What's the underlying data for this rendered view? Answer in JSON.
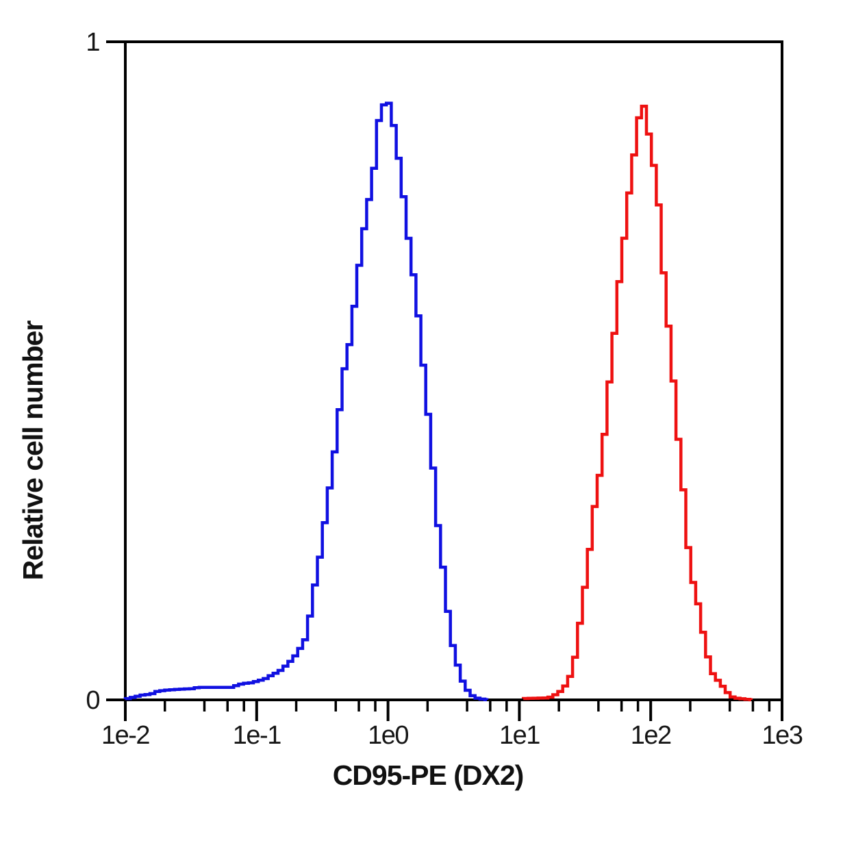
{
  "figure": {
    "background": "#ffffff",
    "frame_color": "#000000"
  },
  "chart_data": {
    "type": "line",
    "subtype": "flow-cytometry-histogram-overlay",
    "title": "",
    "xlabel": "CD95-PE (DX2)",
    "ylabel": "Relative cell number",
    "x_scale": "log10",
    "xlim_log10": [
      -2,
      3
    ],
    "ylim": [
      0,
      1
    ],
    "grid": false,
    "legend": false,
    "x_ticks": [
      {
        "value_log10": -2,
        "label": "1e-2"
      },
      {
        "value_log10": -1,
        "label": "1e-1"
      },
      {
        "value_log10": 0,
        "label": "1e0"
      },
      {
        "value_log10": 1,
        "label": "1e1"
      },
      {
        "value_log10": 2,
        "label": "1e2"
      },
      {
        "value_log10": 3,
        "label": "1e3"
      }
    ],
    "x_minor_tick_multiples": [
      2,
      4,
      6,
      8
    ],
    "y_ticks": [
      {
        "value": 0,
        "label": "0"
      },
      {
        "value": 1,
        "label": "1"
      }
    ],
    "step_bin_width_log10": 0.0375,
    "series": [
      {
        "name": "blue",
        "color": "#1010e1",
        "peak": {
          "x_log10": 0.0,
          "y": 0.91
        },
        "points_log10x_y": [
          [
            -2.0,
            0.001
          ],
          [
            -1.963,
            0.003
          ],
          [
            -1.911,
            0.005
          ],
          [
            -1.885,
            0.007
          ],
          [
            -1.833,
            0.008
          ],
          [
            -1.781,
            0.01
          ],
          [
            -1.754,
            0.013
          ],
          [
            -1.676,
            0.015
          ],
          [
            -1.598,
            0.016
          ],
          [
            -1.493,
            0.017
          ],
          [
            -1.441,
            0.019
          ],
          [
            -1.284,
            0.019
          ],
          [
            -1.18,
            0.019
          ],
          [
            -1.143,
            0.023
          ],
          [
            -1.091,
            0.025
          ],
          [
            -1.038,
            0.026
          ],
          [
            -0.986,
            0.029
          ],
          [
            -0.934,
            0.032
          ],
          [
            -0.882,
            0.038
          ],
          [
            -0.83,
            0.043
          ],
          [
            -0.798,
            0.048
          ],
          [
            -0.762,
            0.055
          ],
          [
            -0.725,
            0.062
          ],
          [
            -0.694,
            0.07
          ],
          [
            -0.657,
            0.082
          ],
          [
            -0.621,
            0.095
          ],
          [
            -0.595,
            0.126
          ],
          [
            -0.579,
            0.144
          ],
          [
            -0.569,
            0.161
          ],
          [
            -0.553,
            0.178
          ],
          [
            -0.537,
            0.196
          ],
          [
            -0.521,
            0.213
          ],
          [
            -0.511,
            0.23
          ],
          [
            -0.495,
            0.248
          ],
          [
            -0.485,
            0.265
          ],
          [
            -0.469,
            0.283
          ],
          [
            -0.459,
            0.3
          ],
          [
            -0.448,
            0.317
          ],
          [
            -0.433,
            0.335
          ],
          [
            -0.422,
            0.352
          ],
          [
            -0.412,
            0.369
          ],
          [
            -0.401,
            0.384
          ],
          [
            -0.391,
            0.404
          ],
          [
            -0.38,
            0.421
          ],
          [
            -0.37,
            0.439
          ],
          [
            -0.359,
            0.457
          ],
          [
            -0.349,
            0.473
          ],
          [
            -0.338,
            0.491
          ],
          [
            -0.328,
            0.509
          ],
          [
            -0.317,
            0.522
          ],
          [
            -0.302,
            0.53
          ],
          [
            -0.291,
            0.543
          ],
          [
            -0.281,
            0.561
          ],
          [
            -0.27,
            0.575
          ],
          [
            -0.26,
            0.592
          ],
          [
            -0.249,
            0.61
          ],
          [
            -0.239,
            0.632
          ],
          [
            -0.228,
            0.648
          ],
          [
            -0.213,
            0.668
          ],
          [
            -0.192,
            0.7
          ],
          [
            -0.171,
            0.731
          ],
          [
            -0.145,
            0.759
          ],
          [
            -0.124,
            0.78
          ],
          [
            -0.108,
            0.804
          ],
          [
            -0.098,
            0.825
          ],
          [
            -0.087,
            0.851
          ],
          [
            -0.077,
            0.879
          ],
          [
            -0.045,
            0.884
          ],
          [
            -0.03,
            0.906
          ],
          [
            0.0,
            0.909
          ],
          [
            0.021,
            0.901
          ],
          [
            0.037,
            0.885
          ],
          [
            0.047,
            0.867
          ],
          [
            0.058,
            0.851
          ],
          [
            0.073,
            0.838
          ],
          [
            0.084,
            0.818
          ],
          [
            0.099,
            0.797
          ],
          [
            0.11,
            0.776
          ],
          [
            0.126,
            0.755
          ],
          [
            0.136,
            0.738
          ],
          [
            0.157,
            0.7
          ],
          [
            0.178,
            0.668
          ],
          [
            0.215,
            0.616
          ],
          [
            0.241,
            0.564
          ],
          [
            0.267,
            0.512
          ],
          [
            0.293,
            0.46
          ],
          [
            0.325,
            0.397
          ],
          [
            0.351,
            0.335
          ],
          [
            0.377,
            0.272
          ],
          [
            0.414,
            0.21
          ],
          [
            0.45,
            0.147
          ],
          [
            0.466,
            0.115
          ],
          [
            0.492,
            0.084
          ],
          [
            0.508,
            0.071
          ],
          [
            0.524,
            0.06
          ],
          [
            0.534,
            0.05
          ],
          [
            0.555,
            0.038
          ],
          [
            0.571,
            0.027
          ],
          [
            0.586,
            0.02
          ],
          [
            0.612,
            0.013
          ],
          [
            0.633,
            0.008
          ],
          [
            0.659,
            0.004
          ],
          [
            0.691,
            0.002
          ],
          [
            0.753,
            0.0
          ]
        ]
      },
      {
        "name": "red",
        "color": "#ee1111",
        "peak": {
          "x_log10": 1.94,
          "y": 0.905
        },
        "points_log10x_y": [
          [
            1.03,
            0.002
          ],
          [
            1.224,
            0.003
          ],
          [
            1.276,
            0.008
          ],
          [
            1.313,
            0.013
          ],
          [
            1.328,
            0.017
          ],
          [
            1.354,
            0.022
          ],
          [
            1.38,
            0.032
          ],
          [
            1.407,
            0.048
          ],
          [
            1.433,
            0.074
          ],
          [
            1.448,
            0.1
          ],
          [
            1.469,
            0.126
          ],
          [
            1.495,
            0.165
          ],
          [
            1.521,
            0.207
          ],
          [
            1.547,
            0.244
          ],
          [
            1.563,
            0.275
          ],
          [
            1.579,
            0.303
          ],
          [
            1.605,
            0.335
          ],
          [
            1.626,
            0.356
          ],
          [
            1.641,
            0.387
          ],
          [
            1.657,
            0.421
          ],
          [
            1.678,
            0.463
          ],
          [
            1.694,
            0.502
          ],
          [
            1.709,
            0.533
          ],
          [
            1.73,
            0.567
          ],
          [
            1.746,
            0.606
          ],
          [
            1.762,
            0.637
          ],
          [
            1.783,
            0.668
          ],
          [
            1.798,
            0.7
          ],
          [
            1.814,
            0.731
          ],
          [
            1.83,
            0.759
          ],
          [
            1.845,
            0.786
          ],
          [
            1.861,
            0.804
          ],
          [
            1.872,
            0.825
          ],
          [
            1.887,
            0.851
          ],
          [
            1.898,
            0.875
          ],
          [
            1.919,
            0.89
          ],
          [
            1.94,
            0.905
          ],
          [
            1.961,
            0.898
          ],
          [
            1.971,
            0.882
          ],
          [
            1.981,
            0.863
          ],
          [
            1.997,
            0.853
          ],
          [
            2.007,
            0.835
          ],
          [
            2.023,
            0.814
          ],
          [
            2.033,
            0.79
          ],
          [
            2.044,
            0.776
          ],
          [
            2.059,
            0.755
          ],
          [
            2.075,
            0.734
          ],
          [
            2.091,
            0.69
          ],
          [
            2.101,
            0.637
          ],
          [
            2.122,
            0.599
          ],
          [
            2.138,
            0.564
          ],
          [
            2.153,
            0.526
          ],
          [
            2.174,
            0.484
          ],
          [
            2.19,
            0.449
          ],
          [
            2.206,
            0.418
          ],
          [
            2.216,
            0.376
          ],
          [
            2.232,
            0.352
          ],
          [
            2.253,
            0.311
          ],
          [
            2.268,
            0.275
          ],
          [
            2.284,
            0.234
          ],
          [
            2.305,
            0.21
          ],
          [
            2.321,
            0.181
          ],
          [
            2.347,
            0.157
          ],
          [
            2.373,
            0.137
          ],
          [
            2.389,
            0.113
          ],
          [
            2.425,
            0.075
          ],
          [
            2.462,
            0.043
          ],
          [
            2.514,
            0.029
          ],
          [
            2.556,
            0.019
          ],
          [
            2.598,
            0.008
          ],
          [
            2.634,
            0.003
          ],
          [
            2.687,
            0.002
          ],
          [
            2.765,
            0.0
          ]
        ]
      }
    ]
  }
}
